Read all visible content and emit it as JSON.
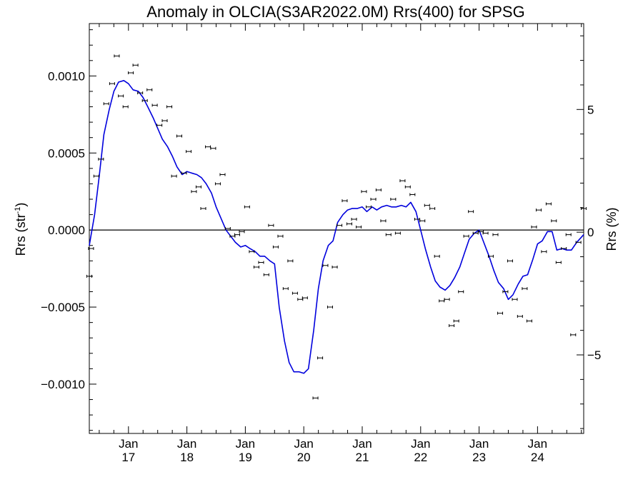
{
  "chart_data": {
    "type": "line",
    "title": "Anomaly in OLCIA(S3AR2022.0M) Rrs(400) for SPSG",
    "ylabel": {
      "main": "Rrs (str",
      "sup": "-1",
      "end": ")"
    },
    "y2label": "Rrs (%)",
    "xlim": [
      2016.33,
      2024.79
    ],
    "ylim": [
      -0.00132,
      0.00134
    ],
    "y2lim": [
      -8.2,
      8.5
    ],
    "x_ticks": [
      {
        "value": 2017.0,
        "month": "Jan",
        "year": "17"
      },
      {
        "value": 2018.0,
        "month": "Jan",
        "year": "18"
      },
      {
        "value": 2019.0,
        "month": "Jan",
        "year": "19"
      },
      {
        "value": 2020.0,
        "month": "Jan",
        "year": "20"
      },
      {
        "value": 2021.0,
        "month": "Jan",
        "year": "21"
      },
      {
        "value": 2022.0,
        "month": "Jan",
        "year": "22"
      },
      {
        "value": 2023.0,
        "month": "Jan",
        "year": "23"
      },
      {
        "value": 2024.0,
        "month": "Jan",
        "year": "24"
      }
    ],
    "y_ticks": [
      {
        "value": 0.001,
        "label": "0.0010"
      },
      {
        "value": 0.0005,
        "label": "0.0005"
      },
      {
        "value": 0.0,
        "label": "0.0000"
      },
      {
        "value": -0.0005,
        "label": "−0.0005"
      },
      {
        "value": -0.001,
        "label": "−0.0010"
      }
    ],
    "y2_ticks": [
      {
        "value": 5,
        "label": "5"
      },
      {
        "value": 0,
        "label": "0"
      },
      {
        "value": -5,
        "label": "−5"
      }
    ],
    "zero_line": true,
    "colors": {
      "line": "#0000dd",
      "points": "#000000",
      "axis": "#000000"
    },
    "series": [
      {
        "style": "line",
        "color": "#0000dd",
        "x": [
          2016.33,
          2016.42,
          2016.5,
          2016.58,
          2016.67,
          2016.75,
          2016.83,
          2016.92,
          2017.0,
          2017.08,
          2017.17,
          2017.25,
          2017.33,
          2017.42,
          2017.5,
          2017.58,
          2017.67,
          2017.75,
          2017.83,
          2017.92,
          2018.0,
          2018.08,
          2018.17,
          2018.25,
          2018.33,
          2018.42,
          2018.5,
          2018.58,
          2018.67,
          2018.75,
          2018.83,
          2018.92,
          2019.0,
          2019.08,
          2019.17,
          2019.25,
          2019.33,
          2019.42,
          2019.5,
          2019.58,
          2019.67,
          2019.75,
          2019.83,
          2019.92,
          2020.0,
          2020.08,
          2020.17,
          2020.25,
          2020.33,
          2020.42,
          2020.5,
          2020.58,
          2020.67,
          2020.75,
          2020.83,
          2020.92,
          2021.0,
          2021.08,
          2021.17,
          2021.25,
          2021.33,
          2021.42,
          2021.5,
          2021.58,
          2021.67,
          2021.75,
          2021.83,
          2021.92,
          2022.0,
          2022.08,
          2022.17,
          2022.25,
          2022.33,
          2022.42,
          2022.5,
          2022.58,
          2022.67,
          2022.75,
          2022.83,
          2022.92,
          2023.0,
          2023.08,
          2023.17,
          2023.25,
          2023.33,
          2023.42,
          2023.5,
          2023.58,
          2023.67,
          2023.75,
          2023.83,
          2023.92,
          2024.0,
          2024.08,
          2024.17,
          2024.25,
          2024.33,
          2024.42,
          2024.5,
          2024.58,
          2024.67,
          2024.79
        ],
        "y": [
          -0.0001,
          0.0001,
          0.00035,
          0.00062,
          0.00078,
          0.0009,
          0.00096,
          0.00097,
          0.00095,
          0.00091,
          0.0009,
          0.00086,
          0.0008,
          0.00073,
          0.00066,
          0.00059,
          0.00054,
          0.00048,
          0.00041,
          0.00036,
          0.00038,
          0.00037,
          0.00036,
          0.00034,
          0.0003,
          0.00024,
          0.00015,
          8e-05,
          0.0,
          -4e-05,
          -8e-05,
          -0.00011,
          -0.0001,
          -0.00012,
          -0.00014,
          -0.00017,
          -0.00017,
          -0.0002,
          -0.00022,
          -0.0005,
          -0.00072,
          -0.00086,
          -0.00092,
          -0.00092,
          -0.00093,
          -0.0009,
          -0.00065,
          -0.00038,
          -0.0002,
          -0.0001,
          -7e-05,
          5e-05,
          0.0001,
          0.00013,
          0.00014,
          0.00014,
          0.00015,
          0.00012,
          0.00015,
          0.00013,
          0.00015,
          0.00016,
          0.00015,
          0.00015,
          0.00016,
          0.00015,
          0.00018,
          0.00012,
          0.0,
          -0.00012,
          -0.00024,
          -0.00033,
          -0.00037,
          -0.00039,
          -0.00036,
          -0.00031,
          -0.00024,
          -0.00015,
          -6e-05,
          -2e-05,
          0.0,
          -8e-05,
          -0.00017,
          -0.00026,
          -0.00034,
          -0.00038,
          -0.00045,
          -0.00042,
          -0.00035,
          -0.0003,
          -0.00029,
          -0.00019,
          -9e-05,
          -7e-05,
          -1e-05,
          -1e-05,
          -0.00013,
          -0.00012,
          -0.00013,
          -0.00013,
          -8e-05,
          -3e-05
        ]
      },
      {
        "style": "points",
        "color": "#000000",
        "x": [
          2016.33,
          2016.36,
          2016.45,
          2016.53,
          2016.62,
          2016.72,
          2016.8,
          2016.87,
          2016.95,
          2017.04,
          2017.12,
          2017.2,
          2017.28,
          2017.36,
          2017.45,
          2017.53,
          2017.62,
          2017.7,
          2017.78,
          2017.87,
          2017.95,
          2018.03,
          2018.12,
          2018.2,
          2018.28,
          2018.36,
          2018.45,
          2018.53,
          2018.61,
          2018.7,
          2018.78,
          2018.86,
          2018.94,
          2019.03,
          2019.11,
          2019.19,
          2019.27,
          2019.36,
          2019.44,
          2019.52,
          2019.6,
          2019.69,
          2019.77,
          2019.85,
          2019.94,
          2020.02,
          2020.2,
          2020.28,
          2020.37,
          2020.45,
          2020.53,
          2020.61,
          2020.7,
          2020.78,
          2020.86,
          2020.94,
          2021.03,
          2021.11,
          2021.19,
          2021.28,
          2021.36,
          2021.45,
          2021.53,
          2021.61,
          2021.69,
          2021.78,
          2021.86,
          2021.94,
          2022.03,
          2022.11,
          2022.2,
          2022.28,
          2022.36,
          2022.45,
          2022.53,
          2022.61,
          2022.69,
          2022.78,
          2022.86,
          2022.94,
          2023.03,
          2023.11,
          2023.2,
          2023.28,
          2023.36,
          2023.45,
          2023.53,
          2023.61,
          2023.7,
          2023.78,
          2023.86,
          2023.94,
          2024.02,
          2024.11,
          2024.19,
          2024.28,
          2024.36,
          2024.45,
          2024.53,
          2024.61,
          2024.7,
          2024.79
        ],
        "y": [
          -0.0003,
          -0.00012,
          0.00035,
          0.00046,
          0.00082,
          0.00095,
          0.00113,
          0.00087,
          0.0008,
          0.00102,
          0.00107,
          0.00089,
          0.00084,
          0.00091,
          0.00081,
          0.00068,
          0.00071,
          0.0008,
          0.00035,
          0.00061,
          0.00037,
          0.00051,
          0.00025,
          0.00028,
          0.00014,
          0.00054,
          0.00053,
          0.0003,
          0.00036,
          1e-05,
          -4e-05,
          -3e-05,
          -1e-05,
          0.00015,
          -0.00014,
          -0.00024,
          -0.00021,
          -0.00029,
          3e-05,
          -0.00011,
          -4e-05,
          -0.00038,
          -0.0002,
          -0.00041,
          -0.00045,
          -0.00044,
          -0.00109,
          -0.00083,
          -0.00023,
          -0.0005,
          -0.00024,
          3e-05,
          0.00019,
          4e-05,
          7e-05,
          2e-05,
          0.00025,
          0.00015,
          0.0002,
          0.00026,
          6e-05,
          -3e-05,
          0.0002,
          -2e-05,
          0.00032,
          0.00028,
          0.00023,
          7e-05,
          6e-05,
          0.00016,
          0.00014,
          -0.00017,
          -0.00046,
          -0.00045,
          -0.00062,
          -0.00059,
          -0.0004,
          -4e-05,
          0.00012,
          -2e-05,
          -1e-05,
          -2e-05,
          -0.00017,
          -3e-05,
          -0.00054,
          -0.0004,
          -0.0002,
          -0.00045,
          -0.00056,
          -0.00038,
          -0.00059,
          2e-05,
          0.00013,
          -0.00014,
          0.00017,
          6e-05,
          -0.00021,
          -0.00012,
          -3e-05,
          -0.00068,
          -8e-05,
          0.00014
        ]
      }
    ]
  }
}
